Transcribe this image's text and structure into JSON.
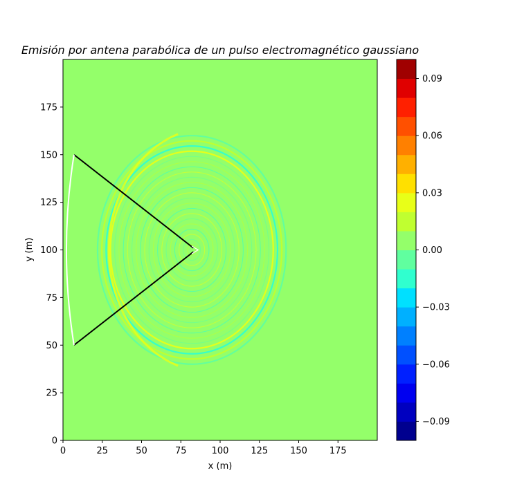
{
  "chart_data": {
    "type": "heatmap",
    "title": "Emisión por antena parabólica de un pulso electromagnético gaussiano",
    "xlabel": "x (m)",
    "ylabel": "y (m)",
    "xlim": [
      0,
      200
    ],
    "ylim": [
      0,
      200
    ],
    "xticks": [
      "0",
      "25",
      "50",
      "75",
      "100",
      "125",
      "150",
      "175"
    ],
    "yticks": [
      "0",
      "25",
      "50",
      "75",
      "100",
      "125",
      "150",
      "175"
    ],
    "colormap": "jet",
    "background_color": "#94ff6a",
    "colorbar": {
      "range": [
        -0.1,
        0.1
      ],
      "ticks": [
        "−0.09",
        "−0.06",
        "−0.03",
        "0.00",
        "0.03",
        "0.06",
        "0.09"
      ],
      "tick_values": [
        -0.09,
        -0.06,
        -0.03,
        0.0,
        0.03,
        0.06,
        0.09
      ],
      "levels": [
        "#00008f",
        "#0000c0",
        "#0000f0",
        "#0020ff",
        "#0050ff",
        "#0080ff",
        "#00b0ff",
        "#00e0ff",
        "#30ffcf",
        "#60ff9f",
        "#94ff6a",
        "#c0ff30",
        "#e8ff18",
        "#ffe000",
        "#ffb000",
        "#ff8000",
        "#ff5000",
        "#ff2000",
        "#e00000",
        "#a00000"
      ]
    },
    "antenna_lines": [
      {
        "from": [
          7,
          150
        ],
        "to": [
          83,
          101
        ],
        "color": "#000000"
      },
      {
        "from": [
          7,
          50
        ],
        "to": [
          83,
          99
        ],
        "color": "#000000"
      }
    ],
    "reflector": {
      "from": [
        7,
        150
      ],
      "to": [
        7,
        50
      ],
      "vertex_x": 0,
      "color": "#ffffff"
    },
    "wavefront_center": [
      82,
      100
    ],
    "wavefront_radius_max": 60
  }
}
